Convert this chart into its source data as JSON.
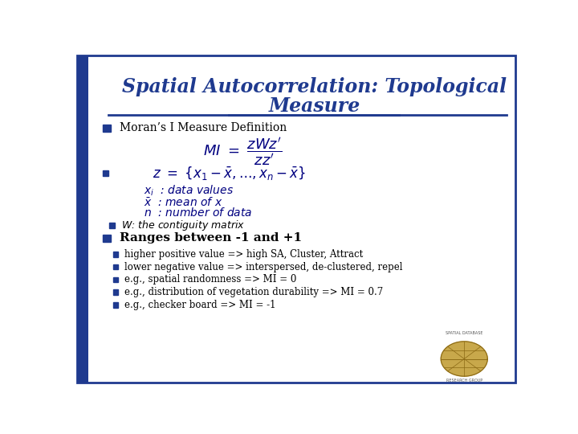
{
  "title_line1": "Spatial Autocorrelation: Topological",
  "title_line2": "Measure",
  "title_color": "#1F3A8F",
  "bg_color": "#FFFFFF",
  "border_color": "#1F3A8F",
  "bullet_color": "#1F3A8F",
  "text_color": "#000080",
  "body_text_color": "#000000",
  "bullet1": "Moran’s I Measure Definition",
  "bullet2": "W: the contiguity matrix",
  "bullet3": "Ranges between -1 and +1",
  "sub_bullets": [
    "higher positive value => high SA, Cluster, Attract",
    "lower negative value => interspersed, de-clustered, repel",
    "e.g., spatial randomness => MI = 0",
    "e.g., distribution of vegetation durability => MI = 0.7",
    "e.g., checker board => MI = -1"
  ]
}
